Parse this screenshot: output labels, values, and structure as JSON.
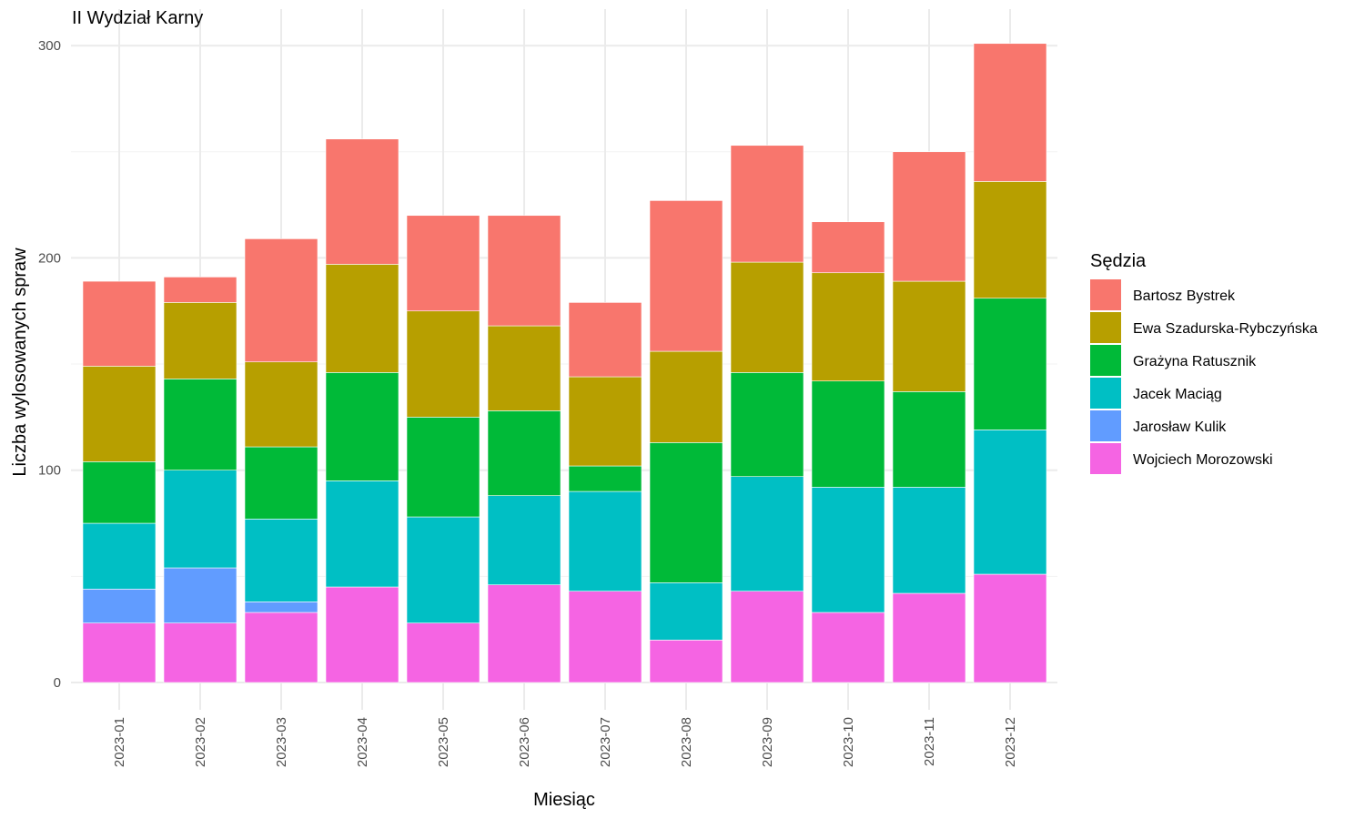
{
  "chart_data": {
    "type": "bar",
    "stacked": true,
    "title": "II Wydział Karny",
    "xlabel": "Miesiąc",
    "ylabel": "Liczba wylosowanych spraw",
    "ylim": [
      0,
      310
    ],
    "yticks": [
      0,
      100,
      200,
      300
    ],
    "grid": true,
    "legend_position": "right",
    "legend_title": "Sędzia",
    "categories": [
      "2023-01",
      "2023-02",
      "2023-03",
      "2023-04",
      "2023-05",
      "2023-06",
      "2023-07",
      "2023-08",
      "2023-09",
      "2023-10",
      "2023-11",
      "2023-12"
    ],
    "series": [
      {
        "name": "Bartosz Bystrek",
        "color": "#F8766D",
        "values": [
          40,
          12,
          58,
          59,
          45,
          52,
          35,
          71,
          55,
          24,
          61,
          65
        ]
      },
      {
        "name": "Ewa Szadurska-Rybczyńska",
        "color": "#B79F00",
        "values": [
          45,
          36,
          40,
          51,
          50,
          40,
          42,
          43,
          52,
          51,
          52,
          55
        ]
      },
      {
        "name": "Grażyna Ratusznik",
        "color": "#00BA38",
        "values": [
          29,
          43,
          34,
          51,
          47,
          40,
          12,
          66,
          49,
          50,
          45,
          62
        ]
      },
      {
        "name": "Jacek Maciąg",
        "color": "#00BFC4",
        "values": [
          31,
          46,
          39,
          50,
          50,
          42,
          47,
          27,
          54,
          59,
          50,
          68
        ]
      },
      {
        "name": "Jarosław Kulik",
        "color": "#619CFF",
        "values": [
          16,
          26,
          5,
          0,
          0,
          0,
          0,
          0,
          0,
          0,
          0,
          0
        ]
      },
      {
        "name": "Wojciech Morozowski",
        "color": "#F564E3",
        "values": [
          28,
          28,
          33,
          45,
          28,
          46,
          43,
          20,
          43,
          33,
          42,
          51
        ]
      }
    ]
  }
}
